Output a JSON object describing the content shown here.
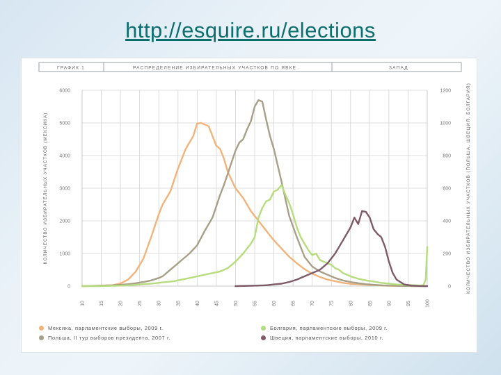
{
  "slide": {
    "link_text": "http://esquire.ru/elections"
  },
  "header": {
    "figure_label": "ГРАФИК 1",
    "title": "РАСПРЕДЕЛЕНИЕ ИЗБИРАТЕЛЬНЫХ УЧАСТКОВ ПО ЯВКЕ",
    "region": "ЗАПАД"
  },
  "chart_data": {
    "type": "line",
    "title": "РАСПРЕДЕЛЕНИЕ ИЗБИРАТЕЛЬНЫХ УЧАСТКОВ ПО ЯВКЕ",
    "xlabel": "",
    "ylabel": "КОЛИЧЕСТВО ИЗБИРАТЕЛЬНЫХ УЧАСТКОВ (МЕКСИКА)",
    "ylabel_right": "КОЛИЧЕСТВО ИЗБИРАТЕЛЬНЫХ УЧАСТКОВ (ПОЛЬША, ШВЕЦИЯ, БОЛГАРИЯ)",
    "ylim": [
      0,
      6000
    ],
    "ylim_right": [
      0,
      1200
    ],
    "yticks": [
      0,
      1000,
      2000,
      3000,
      4000,
      5000,
      6000
    ],
    "yticks_right": [
      0,
      200,
      400,
      600,
      800,
      1000,
      1200
    ],
    "xlim": [
      10,
      100
    ],
    "xticks": [
      10,
      15,
      20,
      25,
      30,
      35,
      40,
      45,
      50,
      55,
      60,
      65,
      70,
      75,
      80,
      85,
      90,
      95,
      100
    ],
    "xtick_labels": [
      "10",
      "15",
      "20",
      "25",
      "30",
      "35",
      "40",
      "45",
      "50",
      "55",
      "60",
      "65",
      "70",
      "75",
      "80",
      "85",
      "90",
      "95",
      "100"
    ],
    "grid": true,
    "legend_position": "bottom",
    "series": [
      {
        "name": "Мексика, парламентские выборы, 2009 г.",
        "axis": "left",
        "color": "#f2b37a",
        "x": [
          10,
          14,
          18,
          20,
          22,
          24,
          26,
          28,
          30,
          31,
          33,
          35,
          37,
          38,
          39,
          40,
          41,
          42,
          43,
          44,
          45,
          46,
          47,
          48,
          50,
          52,
          54,
          56,
          58,
          60,
          62,
          64,
          66,
          68,
          70,
          72,
          74,
          76,
          78,
          80,
          82,
          84,
          86,
          88,
          90,
          94,
          98,
          100
        ],
        "y": [
          0,
          10,
          30,
          80,
          200,
          450,
          850,
          1500,
          2200,
          2500,
          2900,
          3600,
          4200,
          4400,
          4600,
          4980,
          5000,
          4950,
          4900,
          4600,
          4300,
          4200,
          3900,
          3500,
          3000,
          2700,
          2300,
          2000,
          1700,
          1400,
          1150,
          900,
          700,
          520,
          380,
          280,
          200,
          150,
          100,
          70,
          50,
          40,
          30,
          20,
          10,
          5,
          0,
          0
        ]
      },
      {
        "name": "Польша, II тур выборов президента, 2007 г.",
        "axis": "right",
        "color": "#a89f88",
        "x": [
          10,
          14,
          18,
          20,
          22,
          24,
          26,
          28,
          30,
          31,
          32,
          34,
          36,
          38,
          40,
          42,
          44,
          45,
          46,
          47,
          48,
          49,
          50,
          51,
          52,
          53,
          54,
          55,
          56,
          57,
          58,
          59,
          60,
          62,
          64,
          66,
          68,
          70,
          72,
          74,
          76,
          78,
          80,
          82,
          84,
          86,
          88,
          90,
          94,
          98,
          100
        ],
        "y": [
          0,
          2,
          5,
          8,
          12,
          18,
          25,
          35,
          50,
          60,
          80,
          120,
          160,
          200,
          250,
          340,
          420,
          490,
          560,
          620,
          690,
          760,
          830,
          880,
          900,
          960,
          1010,
          1100,
          1140,
          1130,
          1020,
          920,
          840,
          640,
          430,
          300,
          180,
          120,
          90,
          70,
          50,
          35,
          25,
          18,
          12,
          8,
          5,
          3,
          1,
          0,
          0
        ]
      },
      {
        "name": "Болгария, парламентские выборы, 2009 г.",
        "axis": "right",
        "color": "#b6dd7d",
        "x": [
          10,
          14,
          18,
          20,
          22,
          24,
          26,
          28,
          30,
          32,
          34,
          36,
          38,
          40,
          42,
          44,
          46,
          48,
          50,
          52,
          54,
          55,
          56,
          57,
          58,
          59,
          60,
          61,
          62,
          63,
          64,
          65,
          66,
          67,
          68,
          69,
          70,
          71,
          72,
          73,
          74,
          75,
          76,
          77,
          78,
          80,
          82,
          84,
          86,
          88,
          90,
          92,
          94,
          96,
          98,
          99,
          99.6,
          100
        ],
        "y": [
          0,
          0,
          2,
          3,
          5,
          8,
          12,
          15,
          20,
          25,
          30,
          40,
          50,
          60,
          70,
          80,
          90,
          110,
          150,
          200,
          260,
          300,
          420,
          480,
          520,
          530,
          580,
          590,
          620,
          560,
          510,
          440,
          360,
          300,
          260,
          220,
          190,
          200,
          160,
          150,
          140,
          130,
          110,
          100,
          80,
          60,
          45,
          35,
          28,
          20,
          15,
          10,
          8,
          6,
          4,
          5,
          40,
          240
        ]
      },
      {
        "name": "Швеция, парламентские выборы, 2010 г.",
        "axis": "right",
        "color": "#7e5a68",
        "x": [
          50,
          54,
          58,
          60,
          62,
          64,
          66,
          68,
          70,
          72,
          74,
          76,
          78,
          80,
          81,
          82,
          83,
          84,
          85,
          86,
          87,
          88,
          89,
          90,
          91,
          92,
          94,
          96,
          98,
          100
        ],
        "y": [
          0,
          2,
          5,
          10,
          15,
          25,
          40,
          60,
          80,
          100,
          140,
          200,
          280,
          360,
          420,
          380,
          460,
          455,
          420,
          350,
          320,
          300,
          240,
          150,
          80,
          40,
          10,
          3,
          1,
          0
        ]
      }
    ]
  }
}
